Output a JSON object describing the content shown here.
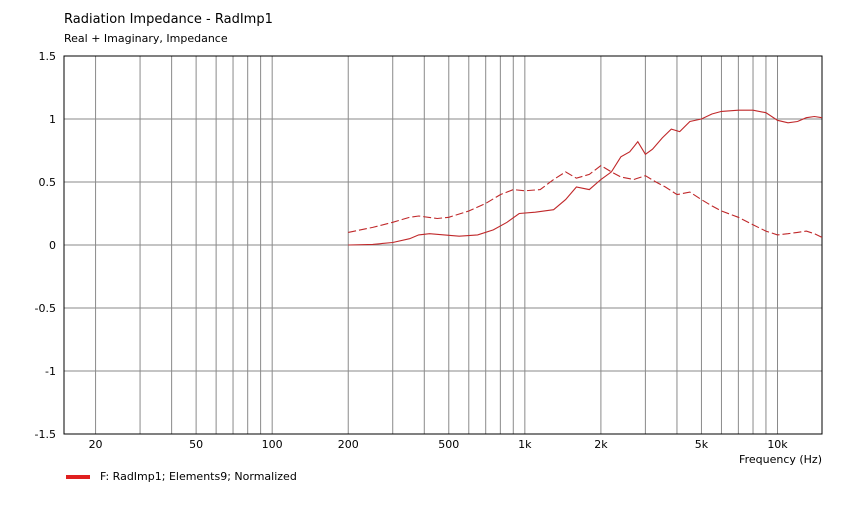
{
  "title": "Radiation Impedance - RadImp1",
  "subtitle": "Real + Imaginary, Impedance",
  "legend": {
    "label": "F: RadImp1;  Elements9; Normalized",
    "color": "#e01f1f"
  },
  "chart_data": {
    "type": "line",
    "x_scale": "log",
    "xlim": [
      15,
      15000
    ],
    "ylim": [
      -1.5,
      1.5
    ],
    "xlabel": "Frequency  (Hz)",
    "ylabel": "",
    "grid": true,
    "x_tick_labels": [
      {
        "value": 20,
        "label": "20"
      },
      {
        "value": 50,
        "label": "50"
      },
      {
        "value": 100,
        "label": "100"
      },
      {
        "value": 200,
        "label": "200"
      },
      {
        "value": 500,
        "label": "500"
      },
      {
        "value": 1000,
        "label": "1k"
      },
      {
        "value": 2000,
        "label": "2k"
      },
      {
        "value": 5000,
        "label": "5k"
      },
      {
        "value": 10000,
        "label": "10k"
      }
    ],
    "y_ticks": [
      {
        "value": 1.5,
        "label": "1.5"
      },
      {
        "value": 1,
        "label": "1"
      },
      {
        "value": 0.5,
        "label": "0.5"
      },
      {
        "value": 0,
        "label": "0"
      },
      {
        "value": -0.5,
        "label": "-0.5"
      },
      {
        "value": -1,
        "label": "-1"
      },
      {
        "value": -1.5,
        "label": "-1.5"
      }
    ],
    "series": [
      {
        "line_style": "solid",
        "color": "#c0282a",
        "points": [
          [
            200,
            0.0
          ],
          [
            250,
            0.005
          ],
          [
            300,
            0.02
          ],
          [
            350,
            0.05
          ],
          [
            380,
            0.08
          ],
          [
            420,
            0.09
          ],
          [
            480,
            0.08
          ],
          [
            550,
            0.07
          ],
          [
            650,
            0.08
          ],
          [
            750,
            0.12
          ],
          [
            850,
            0.18
          ],
          [
            950,
            0.25
          ],
          [
            1100,
            0.26
          ],
          [
            1300,
            0.28
          ],
          [
            1450,
            0.36
          ],
          [
            1600,
            0.46
          ],
          [
            1800,
            0.44
          ],
          [
            2000,
            0.52
          ],
          [
            2200,
            0.58
          ],
          [
            2400,
            0.7
          ],
          [
            2600,
            0.74
          ],
          [
            2800,
            0.82
          ],
          [
            3000,
            0.72
          ],
          [
            3200,
            0.76
          ],
          [
            3500,
            0.85
          ],
          [
            3800,
            0.92
          ],
          [
            4100,
            0.9
          ],
          [
            4500,
            0.98
          ],
          [
            5000,
            1.0
          ],
          [
            5500,
            1.04
          ],
          [
            6000,
            1.06
          ],
          [
            7000,
            1.07
          ],
          [
            8000,
            1.07
          ],
          [
            9000,
            1.05
          ],
          [
            10000,
            0.99
          ],
          [
            11000,
            0.97
          ],
          [
            12000,
            0.98
          ],
          [
            13000,
            1.01
          ],
          [
            14000,
            1.02
          ],
          [
            15000,
            1.01
          ]
        ]
      },
      {
        "line_style": "dashed",
        "color": "#c0282a",
        "points": [
          [
            200,
            0.1
          ],
          [
            250,
            0.14
          ],
          [
            300,
            0.18
          ],
          [
            350,
            0.22
          ],
          [
            380,
            0.23
          ],
          [
            450,
            0.21
          ],
          [
            500,
            0.22
          ],
          [
            600,
            0.27
          ],
          [
            700,
            0.33
          ],
          [
            800,
            0.4
          ],
          [
            900,
            0.44
          ],
          [
            1000,
            0.43
          ],
          [
            1150,
            0.44
          ],
          [
            1300,
            0.52
          ],
          [
            1450,
            0.58
          ],
          [
            1600,
            0.53
          ],
          [
            1800,
            0.56
          ],
          [
            2000,
            0.63
          ],
          [
            2200,
            0.58
          ],
          [
            2400,
            0.54
          ],
          [
            2700,
            0.52
          ],
          [
            3000,
            0.55
          ],
          [
            3300,
            0.5
          ],
          [
            3600,
            0.46
          ],
          [
            4000,
            0.4
          ],
          [
            4500,
            0.42
          ],
          [
            5000,
            0.36
          ],
          [
            5500,
            0.31
          ],
          [
            6000,
            0.27
          ],
          [
            7000,
            0.22
          ],
          [
            8000,
            0.16
          ],
          [
            9000,
            0.11
          ],
          [
            10000,
            0.08
          ],
          [
            11000,
            0.09
          ],
          [
            12000,
            0.1
          ],
          [
            13000,
            0.11
          ],
          [
            14000,
            0.09
          ],
          [
            15000,
            0.06
          ]
        ]
      }
    ]
  }
}
